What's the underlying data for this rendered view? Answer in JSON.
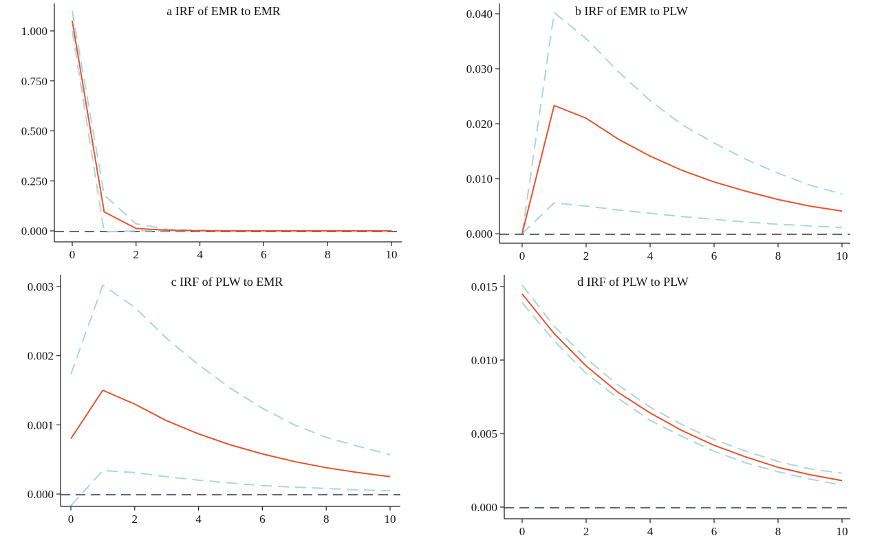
{
  "colors": {
    "irf": "#e8522a",
    "ci": "#a9d6e0",
    "zero": "#2d3450",
    "axis": "#222222"
  },
  "chart_data": [
    {
      "type": "line",
      "title": "a IRF of EMR to EMR",
      "x": [
        0,
        1,
        2,
        3,
        4,
        5,
        6,
        7,
        8,
        9,
        10
      ],
      "xticks": [
        "0",
        "2",
        "4",
        "6",
        "8",
        "10"
      ],
      "yticks": [
        "0.000",
        "0.250",
        "0.500",
        "0.750",
        "1.000"
      ],
      "ytick_values": [
        0,
        0.25,
        0.5,
        0.75,
        1.0
      ],
      "series": [
        {
          "name": "irf",
          "values": [
            1.05,
            0.095,
            0.012,
            0.003,
            0.001,
            0,
            0,
            0,
            0,
            0,
            0
          ]
        },
        {
          "name": "upper",
          "values": [
            1.1,
            0.18,
            0.035,
            0.008,
            0.003,
            0.001,
            0,
            0,
            0,
            0,
            0
          ]
        },
        {
          "name": "lower",
          "values": [
            1.0,
            -0.005,
            0,
            0,
            0,
            0,
            0,
            0,
            0,
            0,
            0
          ]
        }
      ]
    },
    {
      "type": "line",
      "title": "b IRF of EMR to PLW",
      "x": [
        0,
        1,
        2,
        3,
        4,
        5,
        6,
        7,
        8,
        9,
        10
      ],
      "xticks": [
        "0",
        "2",
        "4",
        "6",
        "8",
        "10"
      ],
      "yticks": [
        "0.000",
        "0.010",
        "0.020",
        "0.030",
        "0.040"
      ],
      "ytick_values": [
        0,
        0.01,
        0.02,
        0.03,
        0.04
      ],
      "series": [
        {
          "name": "irf",
          "values": [
            0,
            0.0233,
            0.021,
            0.0172,
            0.0141,
            0.0115,
            0.0094,
            0.0077,
            0.0062,
            0.005,
            0.0041
          ]
        },
        {
          "name": "upper",
          "values": [
            0,
            0.0402,
            0.0355,
            0.0295,
            0.0242,
            0.0198,
            0.0165,
            0.0135,
            0.011,
            0.0088,
            0.0072
          ]
        },
        {
          "name": "lower",
          "values": [
            0,
            0.0056,
            0.005,
            0.0043,
            0.0037,
            0.0031,
            0.0026,
            0.0021,
            0.0017,
            0.0014,
            0.0011
          ]
        }
      ]
    },
    {
      "type": "line",
      "title": "c IRF of PLW to EMR",
      "x": [
        0,
        1,
        2,
        3,
        4,
        5,
        6,
        7,
        8,
        9,
        10
      ],
      "xticks": [
        "0",
        "2",
        "4",
        "6",
        "8",
        "10"
      ],
      "yticks": [
        "0.000",
        "0.001",
        "0.002",
        "0.003"
      ],
      "ytick_values": [
        0,
        0.001,
        0.002,
        0.003
      ],
      "series": [
        {
          "name": "irf",
          "values": [
            0.0008,
            0.0015,
            0.0013,
            0.00106,
            0.00087,
            0.00071,
            0.00058,
            0.00047,
            0.00038,
            0.00031,
            0.00025
          ]
        },
        {
          "name": "upper",
          "values": [
            0.00173,
            0.00302,
            0.0027,
            0.00225,
            0.00187,
            0.00153,
            0.00124,
            0.001,
            0.00082,
            0.00069,
            0.00057
          ]
        },
        {
          "name": "lower",
          "values": [
            -0.00017,
            0.00034,
            0.00031,
            0.00025,
            0.0002,
            0.00016,
            0.00012,
            0.0001,
            8e-05,
            6e-05,
            5e-05
          ]
        }
      ]
    },
    {
      "type": "line",
      "title": "d IRF of PLW to PLW",
      "x": [
        0,
        1,
        2,
        3,
        4,
        5,
        6,
        7,
        8,
        9,
        10
      ],
      "xticks": [
        "0",
        "2",
        "4",
        "6",
        "8",
        "10"
      ],
      "yticks": [
        "0.000",
        "0.005",
        "0.010",
        "0.015"
      ],
      "ytick_values": [
        0,
        0.005,
        0.01,
        0.015
      ],
      "series": [
        {
          "name": "irf",
          "values": [
            0.0145,
            0.0118,
            0.0096,
            0.0078,
            0.0064,
            0.0052,
            0.0042,
            0.0034,
            0.0027,
            0.0022,
            0.0018
          ]
        },
        {
          "name": "upper",
          "values": [
            0.0151,
            0.0123,
            0.0101,
            0.0083,
            0.0068,
            0.0056,
            0.0046,
            0.0038,
            0.0031,
            0.0026,
            0.0023
          ]
        },
        {
          "name": "lower",
          "values": [
            0.0139,
            0.0113,
            0.0091,
            0.0074,
            0.0059,
            0.0048,
            0.0038,
            0.003,
            0.0024,
            0.0019,
            0.0015
          ]
        }
      ]
    }
  ]
}
